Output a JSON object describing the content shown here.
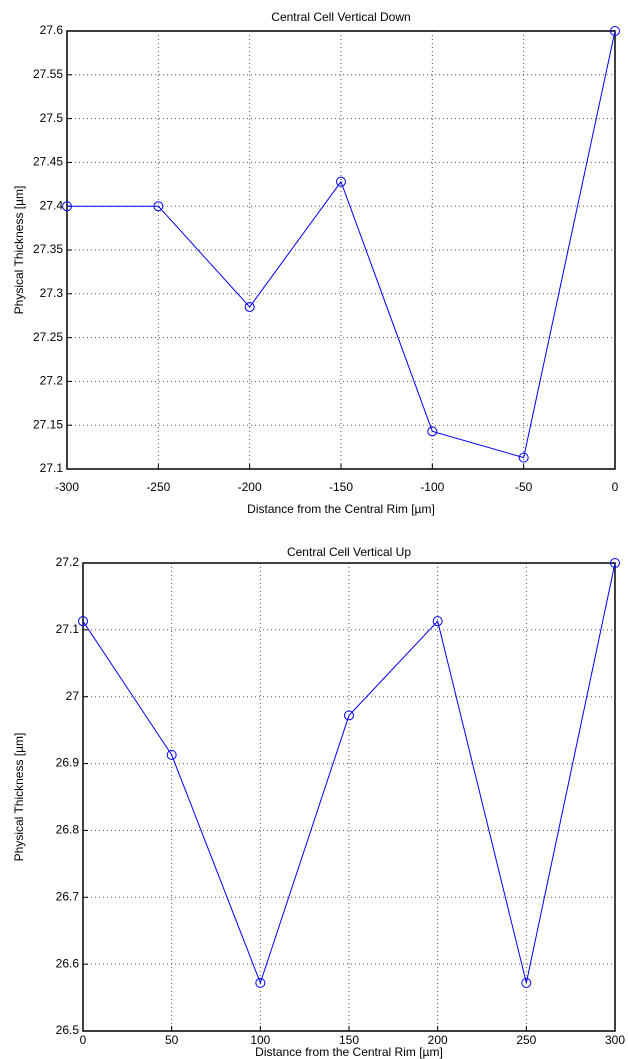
{
  "chart_data": [
    {
      "type": "line",
      "title": "Central Cell Vertical Down",
      "x_label": "Distance from the Central Rim [µm]",
      "y_label": "Physical Thickness [µm]",
      "x": [
        -300,
        -250,
        -200,
        -150,
        -100,
        -50,
        0
      ],
      "series": [
        {
          "name": "Central Cell Vertical Down",
          "color": "#0000ff",
          "values": [
            27.4,
            27.4,
            27.285,
            27.428,
            27.143,
            27.113,
            27.6
          ]
        }
      ],
      "xlim": [
        -300,
        0
      ],
      "xticks": [
        -300,
        -250,
        -200,
        -150,
        -100,
        -50,
        0
      ],
      "ylim": [
        27.1,
        27.6
      ],
      "yticks": [
        27.1,
        27.15,
        27.2,
        27.25,
        27.3,
        27.35,
        27.4,
        27.45,
        27.5,
        27.55,
        27.6
      ],
      "grid": true,
      "marker": "circle"
    },
    {
      "type": "line",
      "title": "Central Cell Vertical Up",
      "x_label": "Distance from the Central Rim [µm]",
      "y_label": "Physical Thickness [µm]",
      "x": [
        0,
        50,
        100,
        150,
        200,
        250,
        300
      ],
      "series": [
        {
          "name": "Central Cell Vertical Up",
          "color": "#0000ff",
          "values": [
            27.113,
            26.913,
            26.572,
            26.972,
            27.113,
            26.572,
            27.2
          ]
        }
      ],
      "xlim": [
        0,
        300
      ],
      "xticks": [
        0,
        50,
        100,
        150,
        200,
        250,
        300
      ],
      "ylim": [
        26.5,
        27.2
      ],
      "yticks": [
        26.5,
        26.6,
        26.7,
        26.8,
        26.9,
        27,
        27.1,
        27.2
      ],
      "grid": true,
      "marker": "circle"
    }
  ]
}
